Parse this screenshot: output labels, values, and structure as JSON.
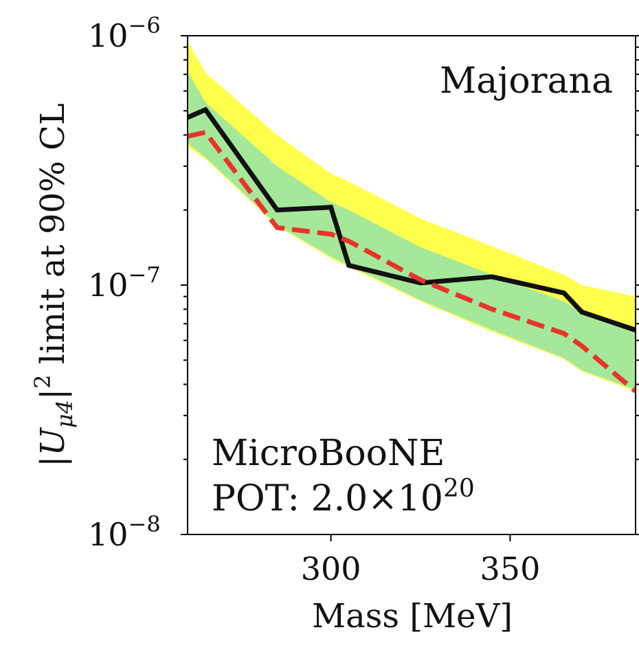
{
  "chart_data": {
    "type": "line",
    "title": "",
    "xlabel": "Mass [MeV]",
    "ylabel_parts": {
      "open": "|",
      "symbol": "U",
      "subscript": "μ4",
      "close": "|",
      "power": "2",
      "rest": " limit at 90% CL"
    },
    "yscale": "log",
    "xlim": [
      260,
      385
    ],
    "ylim": [
      1e-08,
      1e-06
    ],
    "grid": false,
    "x_ticks": [
      {
        "value": 300,
        "label": "300"
      },
      {
        "value": 350,
        "label": "350"
      }
    ],
    "y_ticks": [
      {
        "value": 1e-08,
        "base": "10",
        "exp": "−8"
      },
      {
        "value": 1e-07,
        "base": "10",
        "exp": "−7"
      },
      {
        "value": 1e-06,
        "base": "10",
        "exp": "−6"
      }
    ],
    "bands": [
      {
        "color": "#ffff4d",
        "x": [
          260,
          265,
          285,
          300,
          305,
          325,
          345,
          365,
          370,
          385
        ],
        "lower": [
          3.6e-07,
          3.2e-07,
          1.72e-07,
          1.28e-07,
          1.18e-07,
          8.6e-08,
          6.5e-08,
          5.05e-08,
          4.5e-08,
          3.75e-08
        ],
        "upper": [
          9.5e-07,
          7.1e-07,
          4e-07,
          2.8e-07,
          2.6e-07,
          1.85e-07,
          1.43e-07,
          1.1e-07,
          1e-07,
          9e-08
        ]
      },
      {
        "color": "#a6e89a",
        "x": [
          260,
          265,
          285,
          300,
          305,
          325,
          345,
          365,
          370,
          385
        ],
        "lower": [
          3.7e-07,
          3.25e-07,
          1.74e-07,
          1.3e-07,
          1.2e-07,
          8.7e-08,
          6.6e-08,
          5.1e-08,
          4.55e-08,
          3.8e-08
        ],
        "upper": [
          7.2e-07,
          5.4e-07,
          3e-07,
          2.15e-07,
          2e-07,
          1.42e-07,
          1.1e-07,
          8.6e-08,
          7.8e-08,
          6.8e-08
        ]
      }
    ],
    "series": [
      {
        "color": "#111111",
        "dash": "solid",
        "x": [
          260,
          265,
          285,
          300,
          305,
          325,
          345,
          365,
          370,
          385
        ],
        "y": [
          4.7e-07,
          5.05e-07,
          2e-07,
          2.05e-07,
          1.2e-07,
          1.02e-07,
          1.08e-07,
          9.3e-08,
          7.8e-08,
          6.6e-08
        ]
      },
      {
        "color": "#e8352c",
        "dash": "dashed",
        "x": [
          260,
          265,
          285,
          300,
          305,
          325,
          345,
          365,
          370,
          385
        ],
        "y": [
          3.95e-07,
          4.1e-07,
          1.7e-07,
          1.6e-07,
          1.5e-07,
          1.05e-07,
          8e-08,
          6.4e-08,
          5.7e-08,
          3.75e-08
        ]
      }
    ],
    "annotations": {
      "model": "Majorana",
      "experiment": "MicroBooNE",
      "pot_prefix": "POT: 2.0×10",
      "pot_exp": "20"
    }
  }
}
